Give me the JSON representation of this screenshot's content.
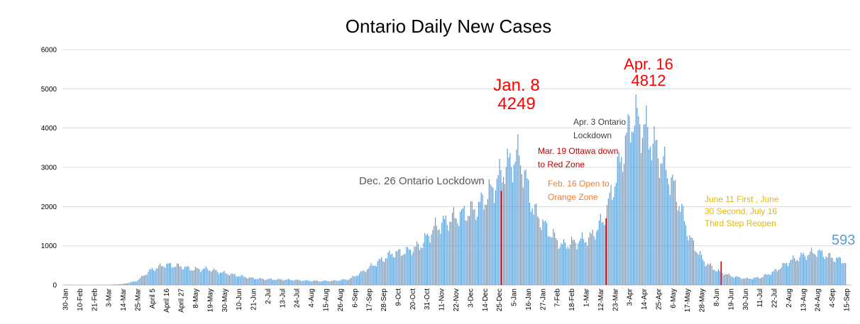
{
  "chart_data": {
    "type": "bar",
    "title": "Ontario Daily New Cases",
    "xlabel": "",
    "ylabel": "",
    "ylim": [
      0,
      6000
    ],
    "yticks": [
      0,
      1000,
      2000,
      3000,
      4000,
      5000,
      6000
    ],
    "grid": "horizontal",
    "legend": "none",
    "bar_color": "#5b9bd5",
    "marker_color": "#c00000",
    "x_tick_labels": [
      "30-Jan",
      "10-Feb",
      "21-Feb",
      "3-Mar",
      "14-Mar",
      "25-Mar",
      "April 5",
      "April 16",
      "April 27",
      "8-May",
      "19-May",
      "30-May",
      "10-Jun",
      "21-Jun",
      "2-Jul",
      "13-Jul",
      "24-Jul",
      "4-Aug",
      "15-Aug",
      "26-Aug",
      "6-Sep",
      "17-Sep",
      "28-Sep",
      "9-Oct",
      "20-Oct",
      "31-Oct",
      "11-Nov",
      "22-Nov",
      "3-Dec",
      "14-Dec",
      "25-Dec",
      "5-Jan",
      "16-Jan",
      "27-Jan",
      "7-Feb",
      "18-Feb",
      "1-Mar",
      "12-Mar",
      "23-Mar",
      "3-Apr",
      "14-Apr",
      "25-Apr",
      "6-May",
      "17-May",
      "28-May",
      "8-Jun",
      "19-Jun",
      "30-Jun",
      "11-Jul",
      "22-Jul",
      "2-Aug",
      "13-Aug",
      "24-Aug",
      "4-Sep",
      "15-Sep"
    ],
    "sampled_values": [
      2,
      0,
      0,
      5,
      25,
      100,
      380,
      520,
      480,
      400,
      410,
      320,
      250,
      180,
      150,
      140,
      130,
      110,
      100,
      110,
      150,
      350,
      580,
      800,
      850,
      1000,
      1450,
      1650,
      1800,
      1950,
      2400,
      3000,
      3300,
      1900,
      1400,
      1000,
      1100,
      1200,
      1700,
      3000,
      4300,
      3900,
      3200,
      2400,
      1200,
      600,
      350,
      220,
      160,
      190,
      350,
      600,
      750,
      850,
      700,
      593
    ],
    "markers": [
      {
        "label": "Dec. 26 Ontario Lockdown",
        "x": "26-Dec",
        "value": 2400
      },
      {
        "label": "Mar. 19 Ottawa down to Red Zone",
        "x": "19-Mar",
        "value": 1700
      },
      {
        "label": "June 11 First , June 30 Second, July 16 Third Step Reopen",
        "x": "11-Jun",
        "value": 600
      }
    ],
    "annotations": [
      {
        "key": "jan8",
        "lines": [
          "Jan. 8",
          "4249"
        ],
        "color": "#ff0000",
        "size": "large"
      },
      {
        "key": "apr16",
        "lines": [
          "Apr. 16",
          "4812"
        ],
        "color": "#ff0000",
        "size": "large"
      },
      {
        "key": "apr3",
        "lines": [
          "Apr. 3 Ontario",
          "Lockdown"
        ],
        "color": "#404040",
        "size": "small"
      },
      {
        "key": "mar19",
        "lines": [
          "Mar. 19 Ottawa down",
          "to Red Zone"
        ],
        "color": "#c00000",
        "size": "small"
      },
      {
        "key": "feb16",
        "lines": [
          "Feb. 16 Open to",
          "Orange Zone"
        ],
        "color": "#ed7d31",
        "size": "small"
      },
      {
        "key": "dec26",
        "lines": [
          "Dec. 26 Ontario Lockdown"
        ],
        "color": "#595959",
        "size": "medium"
      },
      {
        "key": "june",
        "lines": [
          "June 11 First , June",
          "30 Second, July 16",
          "Third Step Reopen"
        ],
        "color": "#e6b800",
        "size": "small"
      },
      {
        "key": "last",
        "lines": [
          "593"
        ],
        "color": "#5b9bd5",
        "size": "large"
      }
    ]
  }
}
